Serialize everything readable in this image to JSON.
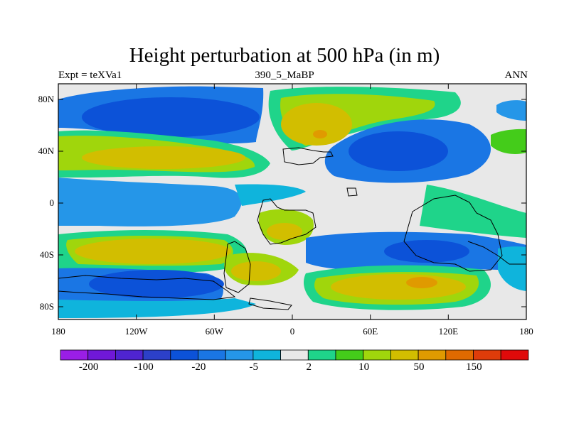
{
  "title": "Height perturbation at 500 hPa (in m)",
  "subtitle_left": "Expt = teXVa1",
  "subtitle_center": "390_5_MaBP",
  "subtitle_right": "ANN",
  "map": {
    "projection": "cylindrical-equidistant",
    "lon_range": [
      -180,
      180
    ],
    "lat_range": [
      -90,
      90
    ],
    "y_ticks": [
      {
        "lat": 80,
        "label": "80N"
      },
      {
        "lat": 40,
        "label": "40N"
      },
      {
        "lat": 0,
        "label": "0"
      },
      {
        "lat": -40,
        "label": "40S"
      },
      {
        "lat": -80,
        "label": "80S"
      }
    ],
    "x_ticks": [
      {
        "lon": -180,
        "label": "180"
      },
      {
        "lon": -120,
        "label": "120W"
      },
      {
        "lon": -60,
        "label": "60W"
      },
      {
        "lon": 0,
        "label": "0"
      },
      {
        "lon": 60,
        "label": "60E"
      },
      {
        "lon": 120,
        "label": "120E"
      },
      {
        "lon": 180,
        "label": "180"
      }
    ],
    "background_color": "#e8e8e8",
    "coastline_color": "#000000"
  },
  "colorbar": {
    "colors": [
      "#9a1ee6",
      "#7018d8",
      "#4f24d0",
      "#2c40c8",
      "#0c52d8",
      "#1a76e4",
      "#2596e8",
      "#0fb4dc",
      "#e8e8e8",
      "#1fd48a",
      "#44cc1a",
      "#a0d60c",
      "#d2be00",
      "#e09a00",
      "#e06a00",
      "#de3c0a",
      "#e00a0a"
    ],
    "labels": [
      {
        "boundary": 1,
        "text": "-200"
      },
      {
        "boundary": 3,
        "text": "-100"
      },
      {
        "boundary": 5,
        "text": "-20"
      },
      {
        "boundary": 7,
        "text": "-5"
      },
      {
        "boundary": 9,
        "text": "2"
      },
      {
        "boundary": 11,
        "text": "10"
      },
      {
        "boundary": 13,
        "text": "50"
      },
      {
        "boundary": 15,
        "text": "150"
      }
    ]
  }
}
